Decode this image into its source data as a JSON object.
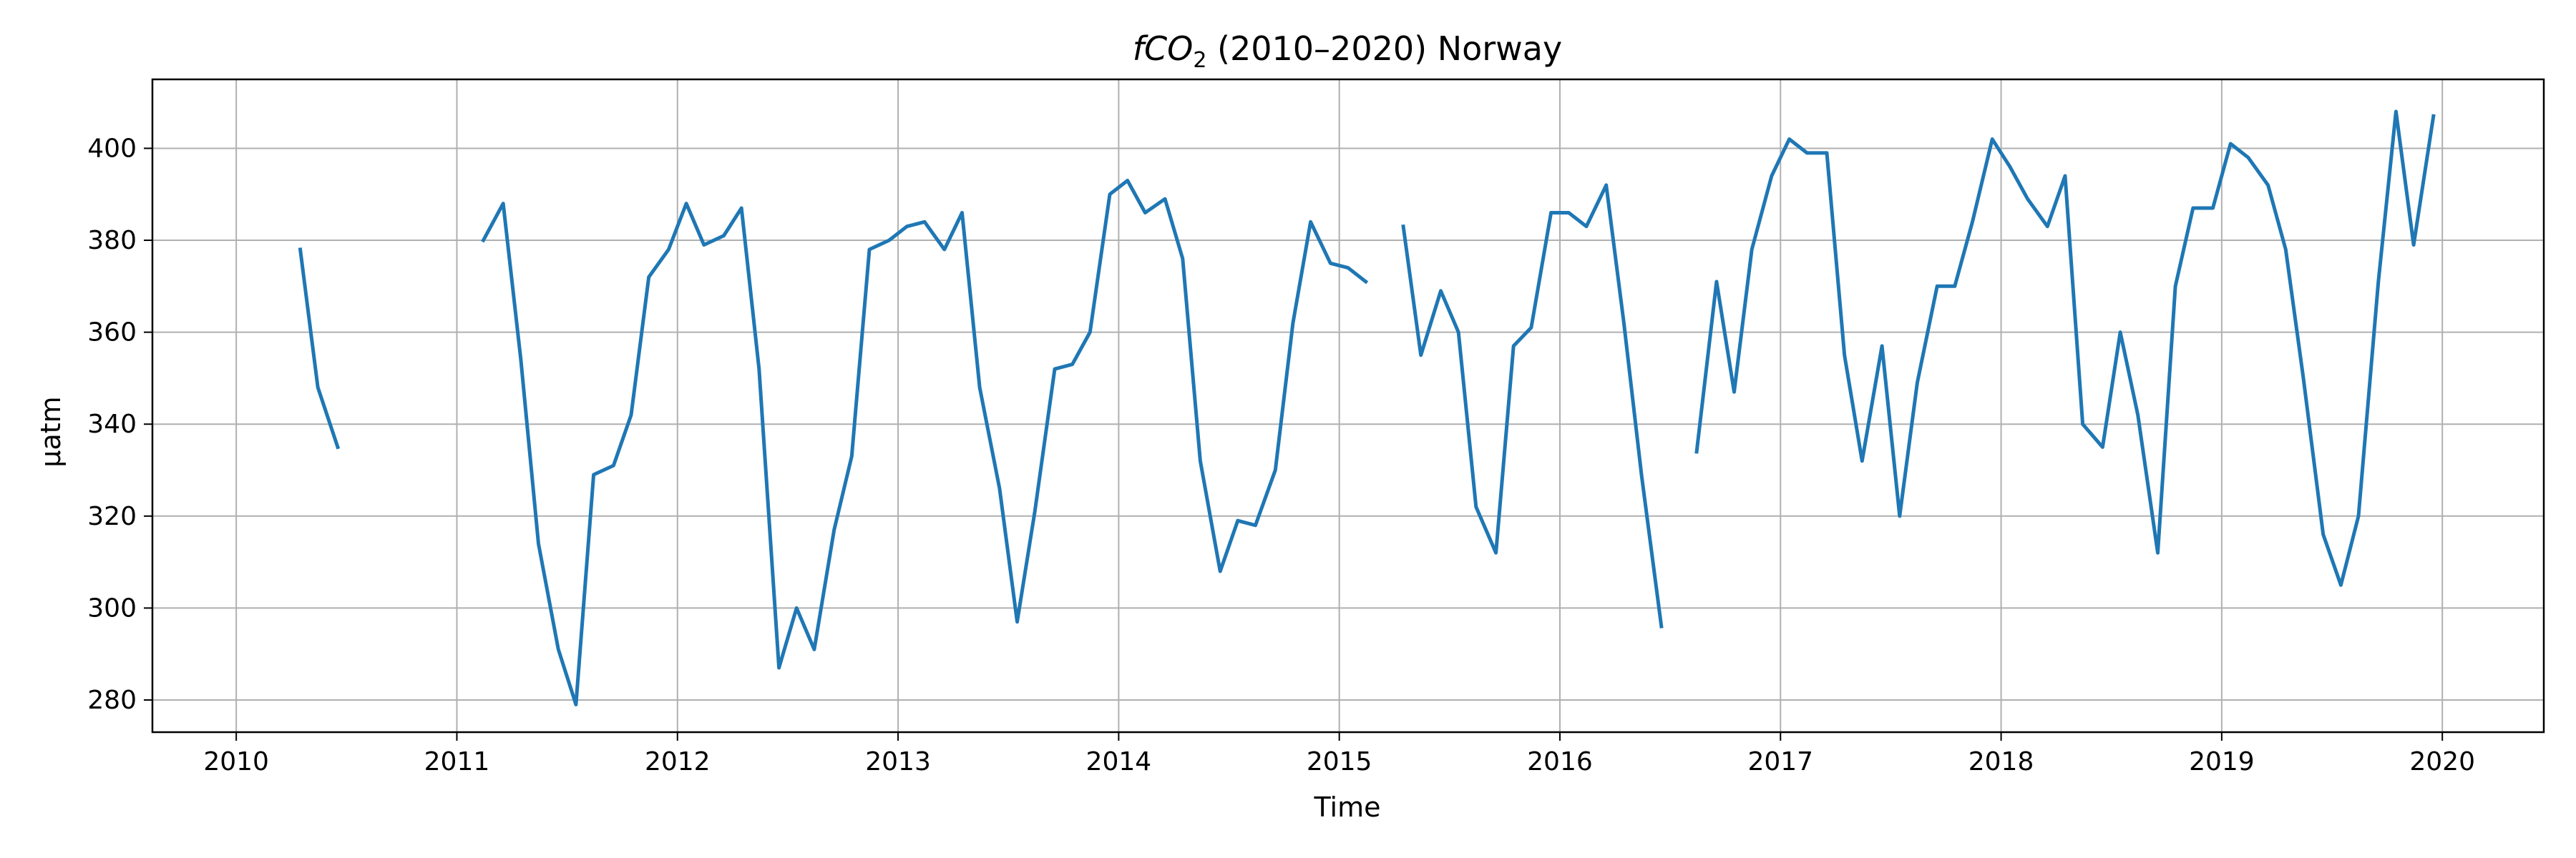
{
  "chart_data": {
    "type": "line",
    "title": {
      "var": "fCO",
      "sub": "2",
      "rest": " (2010–2020) Norway"
    },
    "xlabel": "Time",
    "ylabel": "µatm",
    "xlim": [
      2009.62,
      2020.46
    ],
    "ylim": [
      273,
      415
    ],
    "xticks": [
      2010,
      2011,
      2012,
      2013,
      2014,
      2015,
      2016,
      2017,
      2018,
      2019,
      2020
    ],
    "xtick_labels": [
      "2010",
      "2011",
      "2012",
      "2013",
      "2014",
      "2015",
      "2016",
      "2017",
      "2018",
      "2019",
      "2020"
    ],
    "yticks": [
      280,
      300,
      320,
      340,
      360,
      380,
      400
    ],
    "ytick_labels": [
      "280",
      "300",
      "320",
      "340",
      "360",
      "380",
      "400"
    ],
    "grid": true,
    "series_color": "#1f77b4",
    "segments": [
      [
        [
          2010.29,
          378
        ],
        [
          2010.37,
          348
        ],
        [
          2010.46,
          335
        ]
      ],
      [
        [
          2011.12,
          380
        ],
        [
          2011.21,
          388
        ],
        [
          2011.29,
          354
        ],
        [
          2011.37,
          314
        ],
        [
          2011.46,
          291
        ],
        [
          2011.54,
          279
        ],
        [
          2011.62,
          329
        ],
        [
          2011.71,
          331
        ],
        [
          2011.79,
          342
        ],
        [
          2011.87,
          372
        ],
        [
          2011.96,
          378
        ],
        [
          2012.04,
          388
        ],
        [
          2012.12,
          379
        ],
        [
          2012.21,
          381
        ],
        [
          2012.29,
          387
        ],
        [
          2012.37,
          352
        ],
        [
          2012.46,
          287
        ],
        [
          2012.54,
          300
        ],
        [
          2012.62,
          291
        ],
        [
          2012.71,
          317
        ],
        [
          2012.79,
          333
        ],
        [
          2012.87,
          378
        ],
        [
          2012.96,
          380
        ],
        [
          2013.04,
          383
        ],
        [
          2013.12,
          384
        ],
        [
          2013.21,
          378
        ],
        [
          2013.29,
          386
        ],
        [
          2013.37,
          348
        ],
        [
          2013.46,
          326
        ],
        [
          2013.54,
          297
        ],
        [
          2013.62,
          321
        ],
        [
          2013.71,
          352
        ],
        [
          2013.79,
          353
        ],
        [
          2013.87,
          360
        ],
        [
          2013.96,
          390
        ],
        [
          2014.04,
          393
        ],
        [
          2014.12,
          386
        ],
        [
          2014.21,
          389
        ],
        [
          2014.29,
          376
        ],
        [
          2014.37,
          332
        ],
        [
          2014.46,
          308
        ],
        [
          2014.54,
          319
        ],
        [
          2014.62,
          318
        ],
        [
          2014.71,
          330
        ],
        [
          2014.79,
          362
        ],
        [
          2014.87,
          384
        ],
        [
          2014.96,
          375
        ],
        [
          2015.04,
          374
        ],
        [
          2015.12,
          371
        ]
      ],
      [
        [
          2015.29,
          383
        ],
        [
          2015.37,
          355
        ],
        [
          2015.46,
          369
        ],
        [
          2015.54,
          360
        ],
        [
          2015.62,
          322
        ],
        [
          2015.71,
          312
        ],
        [
          2015.79,
          357
        ],
        [
          2015.87,
          361
        ],
        [
          2015.96,
          386
        ],
        [
          2016.04,
          386
        ],
        [
          2016.12,
          383
        ],
        [
          2016.21,
          392
        ],
        [
          2016.29,
          362
        ],
        [
          2016.37,
          329
        ],
        [
          2016.46,
          296
        ]
      ],
      [
        [
          2016.62,
          334
        ],
        [
          2016.71,
          371
        ],
        [
          2016.79,
          347
        ],
        [
          2016.87,
          378
        ],
        [
          2016.96,
          394
        ],
        [
          2017.04,
          402
        ],
        [
          2017.12,
          399
        ],
        [
          2017.21,
          399
        ],
        [
          2017.29,
          355
        ],
        [
          2017.37,
          332
        ],
        [
          2017.46,
          357
        ],
        [
          2017.54,
          320
        ],
        [
          2017.62,
          349
        ],
        [
          2017.71,
          370
        ],
        [
          2017.79,
          370
        ],
        [
          2017.87,
          384
        ],
        [
          2017.96,
          402
        ],
        [
          2018.04,
          396
        ],
        [
          2018.12,
          389
        ],
        [
          2018.21,
          383
        ],
        [
          2018.29,
          394
        ],
        [
          2018.37,
          340
        ],
        [
          2018.46,
          335
        ],
        [
          2018.54,
          360
        ],
        [
          2018.62,
          342
        ],
        [
          2018.71,
          312
        ],
        [
          2018.79,
          370
        ],
        [
          2018.87,
          387
        ],
        [
          2018.96,
          387
        ],
        [
          2019.04,
          401
        ],
        [
          2019.12,
          398
        ],
        [
          2019.21,
          392
        ],
        [
          2019.29,
          378
        ],
        [
          2019.37,
          350
        ],
        [
          2019.46,
          316
        ],
        [
          2019.54,
          305
        ],
        [
          2019.62,
          320
        ],
        [
          2019.71,
          371
        ],
        [
          2019.79,
          408
        ],
        [
          2019.87,
          379
        ],
        [
          2019.96,
          407
        ]
      ]
    ]
  }
}
